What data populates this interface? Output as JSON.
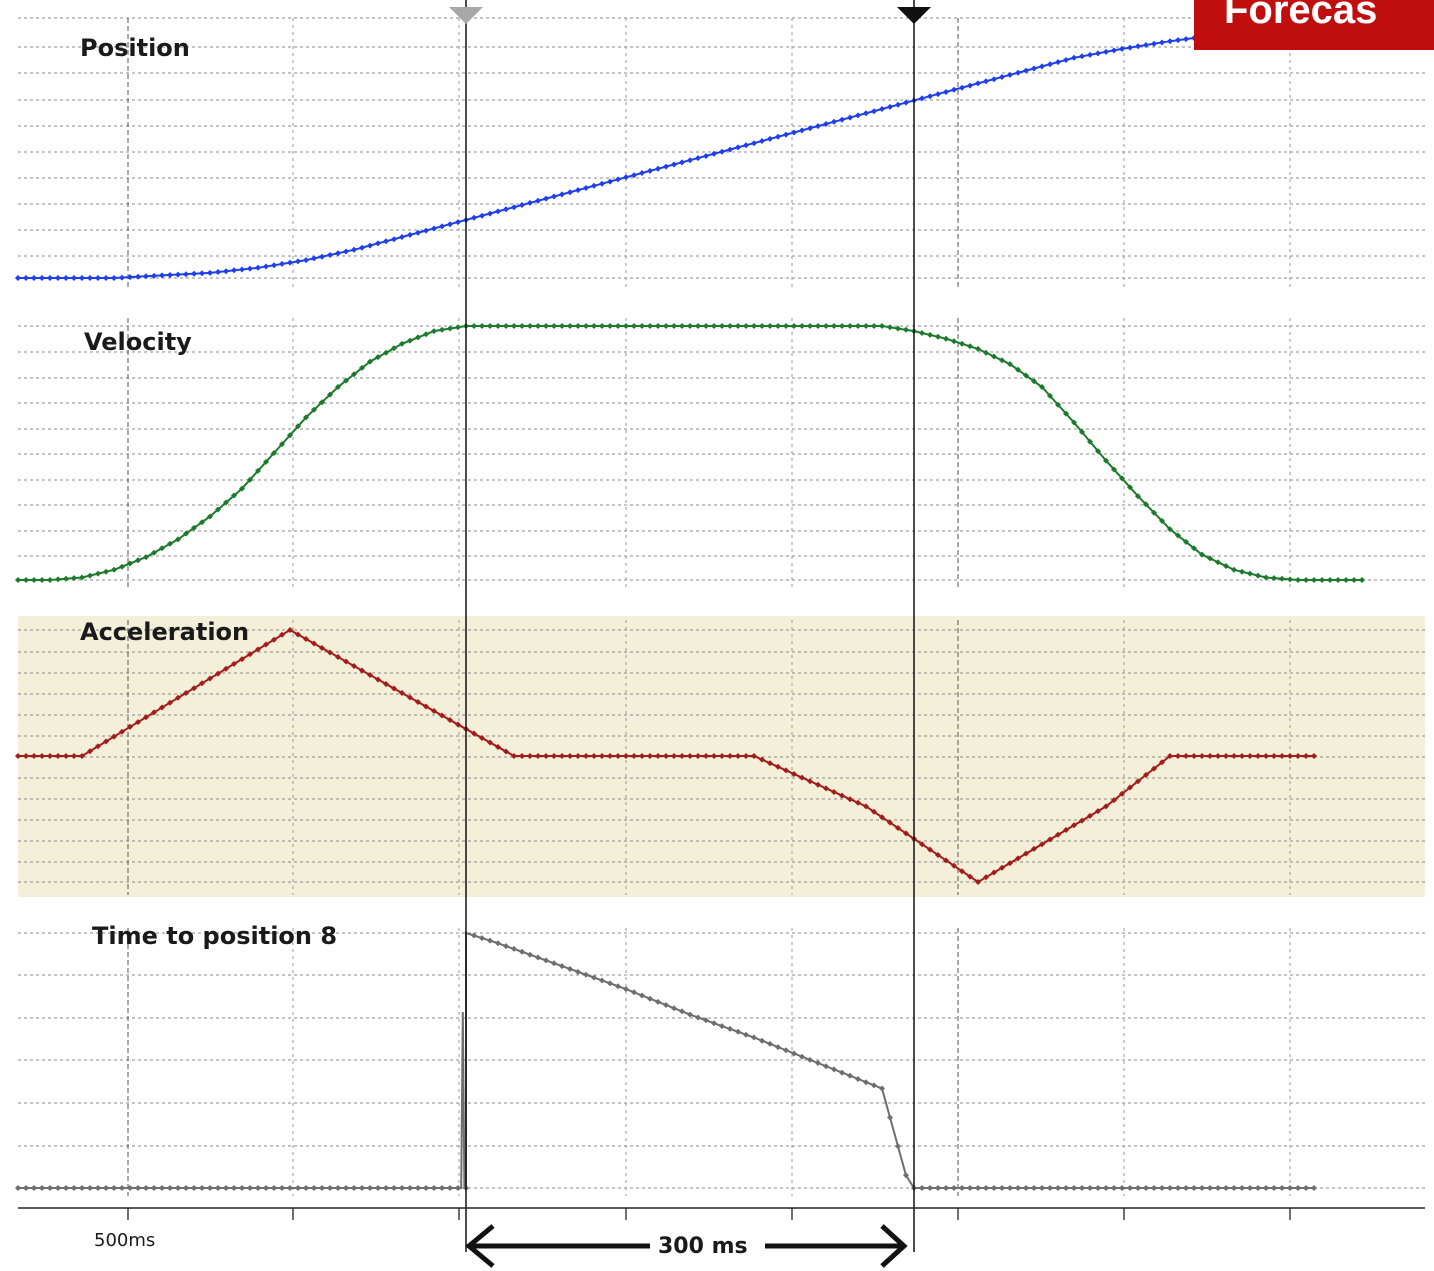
{
  "badge": {
    "text": "Forecas"
  },
  "colors": {
    "position": "#1f3fe8",
    "velocity": "#1c7a2c",
    "acceleration": "#a31c1c",
    "time_to_position": "#6e6e6e",
    "acceleration_bg": "#f3efd9",
    "badge": "#c00d0d"
  },
  "chart_data": {
    "type": "line",
    "xlabel": "",
    "x_tick_label": "500ms",
    "span_annotation": "300 ms",
    "grid": true,
    "panels": [
      {
        "key": "position",
        "title": "Position",
        "points": [
          [
            0,
            0
          ],
          [
            60,
            0
          ],
          [
            90,
            0.01
          ],
          [
            120,
            0.02
          ],
          [
            150,
            0.04
          ],
          [
            180,
            0.07
          ],
          [
            210,
            0.11
          ],
          [
            240,
            0.16
          ],
          [
            270,
            0.21
          ],
          [
            300,
            0.26
          ],
          [
            330,
            0.31
          ],
          [
            360,
            0.36
          ],
          [
            390,
            0.41
          ],
          [
            420,
            0.46
          ],
          [
            450,
            0.51
          ],
          [
            480,
            0.56
          ],
          [
            510,
            0.61
          ],
          [
            540,
            0.66
          ],
          [
            570,
            0.71
          ],
          [
            600,
            0.76
          ],
          [
            630,
            0.81
          ],
          [
            660,
            0.86
          ],
          [
            690,
            0.895
          ],
          [
            720,
            0.925
          ],
          [
            750,
            0.95
          ],
          [
            780,
            0.97
          ],
          [
            810,
            0.985
          ],
          [
            840,
            0.995
          ]
        ]
      },
      {
        "key": "velocity",
        "title": "Velocity",
        "points": [
          [
            0,
            0
          ],
          [
            20,
            0
          ],
          [
            40,
            0.01
          ],
          [
            60,
            0.04
          ],
          [
            80,
            0.09
          ],
          [
            100,
            0.16
          ],
          [
            120,
            0.25
          ],
          [
            140,
            0.36
          ],
          [
            160,
            0.5
          ],
          [
            180,
            0.64
          ],
          [
            200,
            0.76
          ],
          [
            220,
            0.86
          ],
          [
            240,
            0.93
          ],
          [
            260,
            0.98
          ],
          [
            280,
            1
          ],
          [
            300,
            1
          ],
          [
            360,
            1
          ],
          [
            420,
            1
          ],
          [
            480,
            1
          ],
          [
            520,
            1
          ],
          [
            540,
            1
          ],
          [
            560,
            0.98
          ],
          [
            580,
            0.95
          ],
          [
            600,
            0.91
          ],
          [
            620,
            0.85
          ],
          [
            640,
            0.76
          ],
          [
            660,
            0.62
          ],
          [
            680,
            0.47
          ],
          [
            700,
            0.33
          ],
          [
            720,
            0.2
          ],
          [
            740,
            0.1
          ],
          [
            760,
            0.04
          ],
          [
            780,
            0.01
          ],
          [
            800,
            0
          ],
          [
            840,
            0
          ]
        ]
      },
      {
        "key": "acceleration",
        "title": "Acceleration",
        "points": [
          [
            0,
            0
          ],
          [
            40,
            0
          ],
          [
            170,
            1
          ],
          [
            310,
            0
          ],
          [
            360,
            0
          ],
          [
            420,
            0
          ],
          [
            460,
            0
          ],
          [
            530,
            -0.4
          ],
          [
            600,
            -1
          ],
          [
            680,
            -0.4
          ],
          [
            720,
            0
          ],
          [
            810,
            0
          ]
        ]
      },
      {
        "key": "time_to_position",
        "title": "Time to position 8",
        "points": [
          [
            0,
            0
          ],
          [
            277,
            0
          ],
          [
            278,
            0.69
          ],
          [
            279,
            0
          ],
          [
            280,
            0
          ],
          [
            280,
            1
          ],
          [
            300,
            0.96
          ],
          [
            340,
            0.87
          ],
          [
            380,
            0.78
          ],
          [
            420,
            0.68
          ],
          [
            460,
            0.59
          ],
          [
            500,
            0.49
          ],
          [
            540,
            0.39
          ],
          [
            555,
            0.05
          ],
          [
            560,
            0
          ],
          [
            600,
            0
          ],
          [
            700,
            0
          ],
          [
            810,
            0
          ]
        ]
      }
    ],
    "cursors": [
      {
        "x": 280,
        "style": "grey"
      },
      {
        "x": 560,
        "style": "black"
      }
    ]
  }
}
